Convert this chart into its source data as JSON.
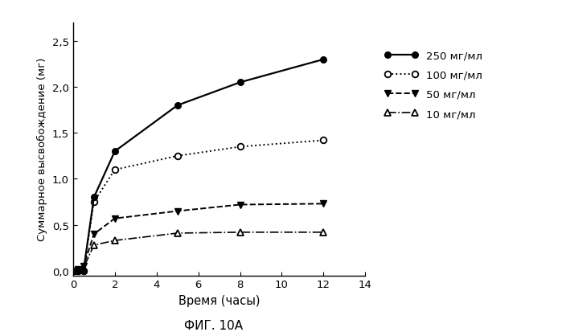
{
  "x": [
    0,
    0.25,
    0.5,
    1,
    2,
    5,
    8,
    12
  ],
  "series_250": [
    0,
    0.0,
    0.0,
    0.8,
    1.3,
    1.8,
    2.05,
    2.3
  ],
  "series_100": [
    0,
    0.0,
    0.0,
    0.75,
    1.1,
    1.25,
    1.35,
    1.42
  ],
  "series_50": [
    0,
    0.02,
    0.05,
    0.4,
    0.57,
    0.65,
    0.72,
    0.73
  ],
  "series_10": [
    0,
    0.01,
    0.03,
    0.28,
    0.33,
    0.41,
    0.42,
    0.42
  ],
  "labels": [
    "250 мг/мл",
    "100 мг/мл",
    "50 мг/мл",
    "10 мг/мл"
  ],
  "xlabel": "Время (часы)",
  "ylabel": "Суммарное высвобождение (мг)",
  "caption": "ФИГ. 10А",
  "xlim": [
    0,
    14
  ],
  "ylim": [
    -0.05,
    2.7
  ],
  "yticks": [
    0.0,
    0.5,
    1.0,
    1.5,
    2.0,
    2.5
  ],
  "xticks": [
    0,
    2,
    4,
    6,
    8,
    10,
    12,
    14
  ],
  "background_color": "#ffffff"
}
